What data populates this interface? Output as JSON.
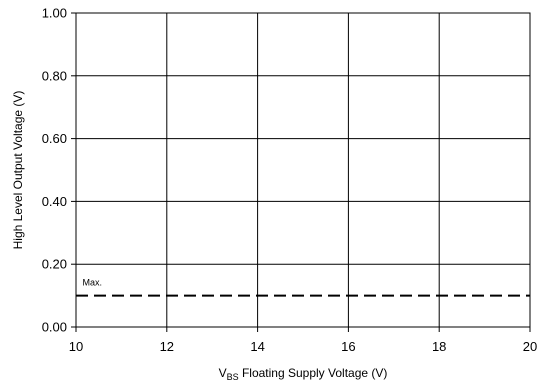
{
  "chart_data": {
    "type": "line",
    "title": "",
    "xlabel": {
      "prefix": "V",
      "subscript": "BS",
      "suffix": " Floating Supply Voltage (V)"
    },
    "ylabel": "High Level Output Voltage (V)",
    "xlim": [
      10,
      20
    ],
    "ylim": [
      0,
      1.0
    ],
    "x_ticks": [
      10,
      12,
      14,
      16,
      18,
      20
    ],
    "x_tick_labels": [
      "10",
      "12",
      "14",
      "16",
      "18",
      "20"
    ],
    "y_ticks": [
      0,
      0.2,
      0.4,
      0.6,
      0.8,
      1.0
    ],
    "y_tick_labels": [
      "0.00",
      "0.20",
      "0.40",
      "0.60",
      "0.80",
      "1.00"
    ],
    "grid": true,
    "series": [
      {
        "name": "Max.",
        "style": "dashed",
        "color": "#000000",
        "x": [
          10,
          20
        ],
        "y": [
          0.1,
          0.1
        ]
      }
    ],
    "annotations": [
      {
        "text": "Max.",
        "x": 10.1,
        "y": 0.12
      }
    ]
  }
}
